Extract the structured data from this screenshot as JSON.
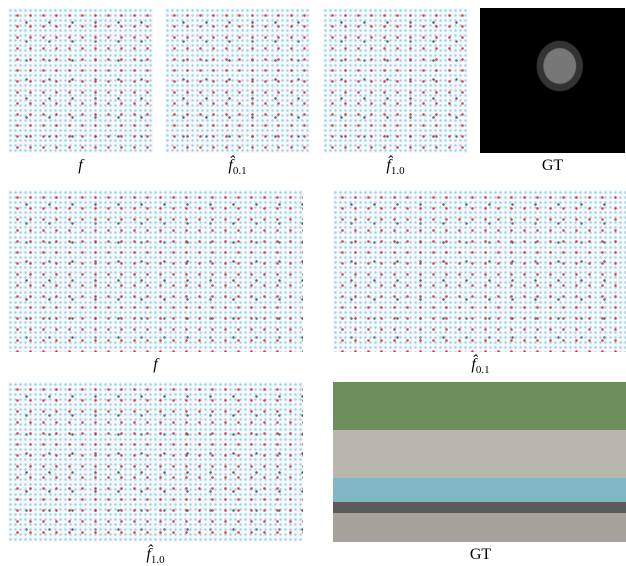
{
  "figure": {
    "rows": [
      {
        "panels": [
          {
            "symbol": "f"
          },
          {
            "symbol": "f̂",
            "subscript": "0.1"
          },
          {
            "symbol": "f̂",
            "subscript": "1.0"
          },
          {
            "symbol": "GT"
          }
        ]
      },
      {
        "panels": [
          {
            "symbol": "f"
          },
          {
            "symbol": "f̂",
            "subscript": "0.1"
          }
        ]
      },
      {
        "panels": [
          {
            "symbol": "f̂",
            "subscript": "1.0"
          },
          {
            "symbol": "GT"
          }
        ]
      }
    ]
  }
}
